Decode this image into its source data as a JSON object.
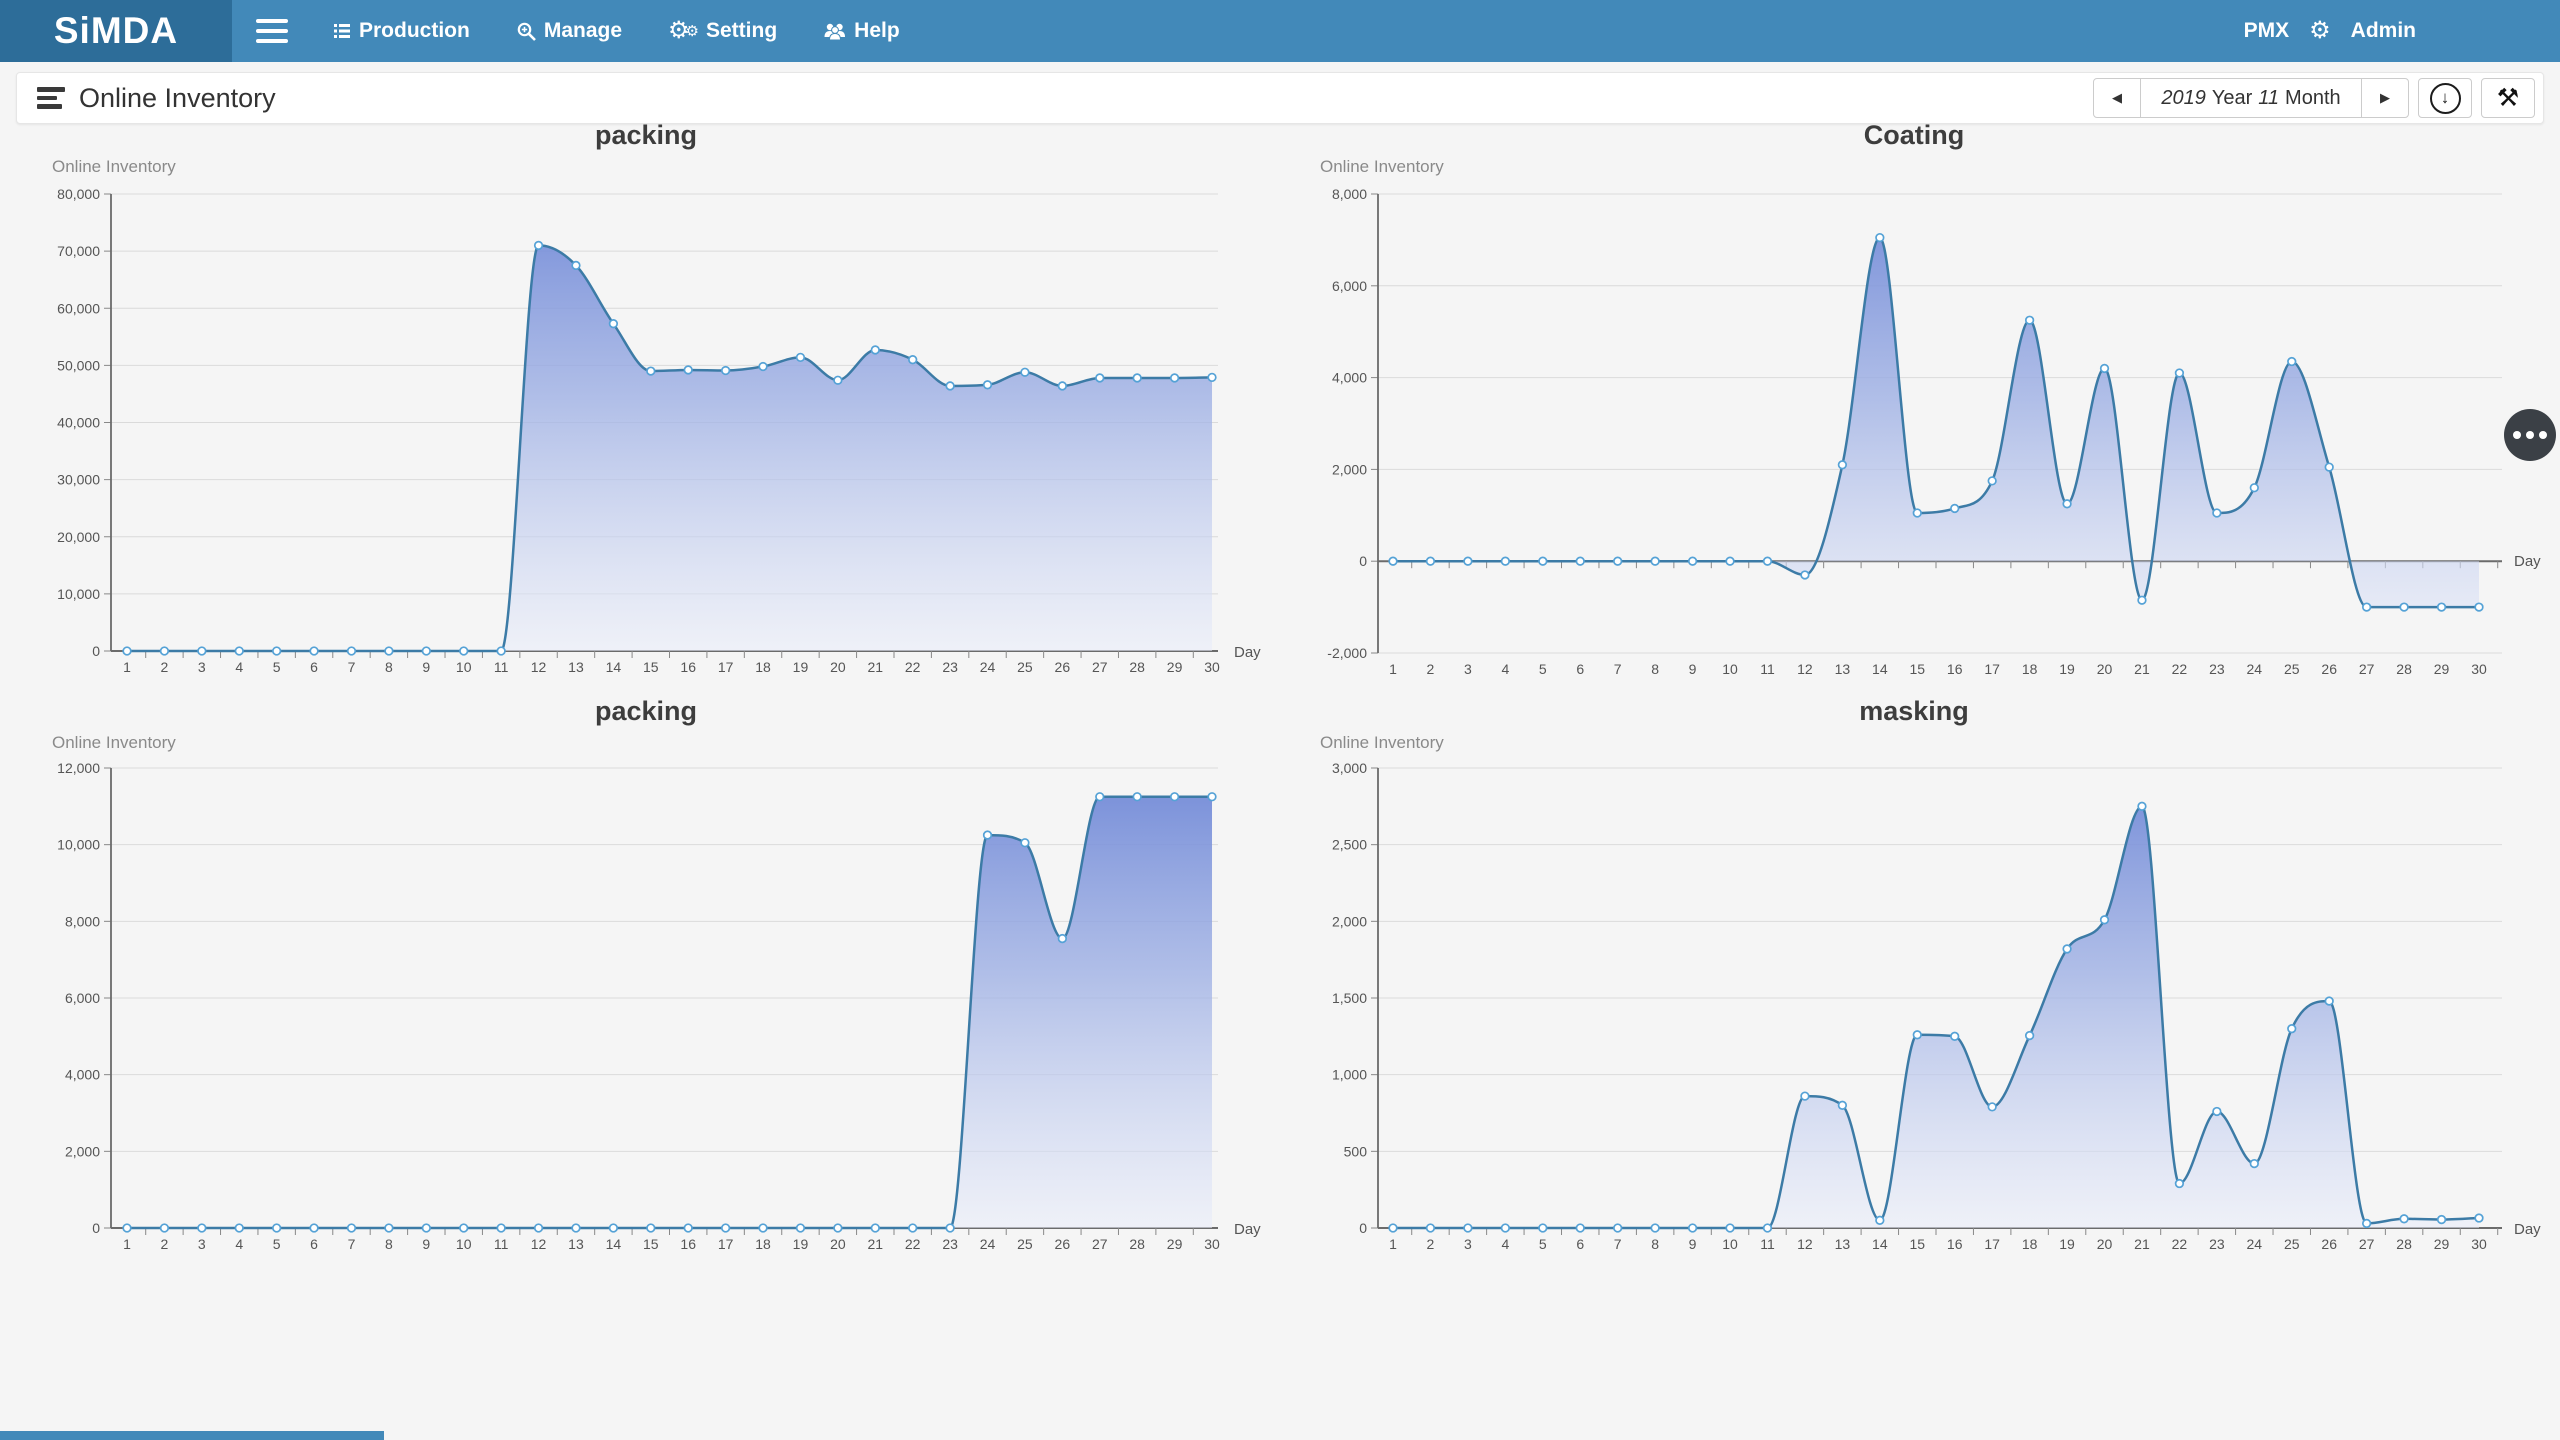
{
  "navbar": {
    "brand": "SiMDA",
    "menu_toggle_icon": "hamburger-icon",
    "items": [
      {
        "label": "Production",
        "icon": "list-lines-icon"
      },
      {
        "label": "Manage",
        "icon": "magnifier-plus-icon"
      },
      {
        "label": "Setting",
        "icon": "gears-icon"
      },
      {
        "label": "Help",
        "icon": "users-icon"
      }
    ],
    "right": {
      "pmx": "PMX",
      "gear_icon": "gear-icon",
      "admin": "Admin"
    }
  },
  "header": {
    "title": "Online Inventory",
    "title_icon": "list-bars-icon",
    "date_nav": {
      "prev_icon": "left-arrow-icon",
      "year_value": "2019",
      "year_label": "Year",
      "month_value": "11",
      "month_label": "Month",
      "next_icon": "right-arrow-icon"
    },
    "download_icon": "download-circle-icon",
    "tools_icon": "tools-icon"
  },
  "floating_button": {
    "icon": "ellipsis-icon"
  },
  "theme": {
    "navbar_bg": "#4289b9",
    "brand_bg": "#2d6d99",
    "page_bg": "#f5f5f5",
    "line_color": "#3c7ba6",
    "marker_ring": "#55a2d6",
    "fill_top": "#6c85d6",
    "fill_bottom": "#e9edfa"
  },
  "chart_data": [
    {
      "type": "area",
      "title": "packing",
      "ylabel": "Online Inventory",
      "xlabel": "Day",
      "categories": [
        1,
        2,
        3,
        4,
        5,
        6,
        7,
        8,
        9,
        10,
        11,
        12,
        13,
        14,
        15,
        16,
        17,
        18,
        19,
        20,
        21,
        22,
        23,
        24,
        25,
        26,
        27,
        28,
        29,
        30
      ],
      "values": [
        0,
        0,
        0,
        0,
        0,
        0,
        0,
        0,
        0,
        0,
        0,
        71000,
        67500,
        57300,
        49000,
        49200,
        49100,
        49800,
        51400,
        47400,
        52700,
        51000,
        46400,
        46600,
        48800,
        46400,
        47800,
        47800,
        47800,
        47900
      ],
      "ylim": [
        0,
        80000
      ],
      "ytick_step": 10000,
      "line_color": "#3c7ba6",
      "markers": true,
      "grid": true,
      "legend": false
    },
    {
      "type": "area",
      "title": "Coating",
      "ylabel": "Online Inventory",
      "xlabel": "Day",
      "categories": [
        1,
        2,
        3,
        4,
        5,
        6,
        7,
        8,
        9,
        10,
        11,
        12,
        13,
        14,
        15,
        16,
        17,
        18,
        19,
        20,
        21,
        22,
        23,
        24,
        25,
        26,
        27,
        28,
        29,
        30
      ],
      "values": [
        0,
        0,
        0,
        0,
        0,
        0,
        0,
        0,
        0,
        0,
        0,
        -300,
        2100,
        7050,
        1050,
        1150,
        1750,
        5250,
        1250,
        4200,
        -850,
        4100,
        1050,
        1600,
        4350,
        2050,
        -1000,
        -1000,
        -1000,
        -1000
      ],
      "ylim": [
        -2000,
        8000
      ],
      "ytick_step": 2000,
      "line_color": "#3c7ba6",
      "markers": true,
      "grid": true,
      "legend": false
    },
    {
      "type": "area",
      "title": "packing",
      "ylabel": "Online Inventory",
      "xlabel": "Day",
      "categories": [
        1,
        2,
        3,
        4,
        5,
        6,
        7,
        8,
        9,
        10,
        11,
        12,
        13,
        14,
        15,
        16,
        17,
        18,
        19,
        20,
        21,
        22,
        23,
        24,
        25,
        26,
        27,
        28,
        29,
        30
      ],
      "values": [
        0,
        0,
        0,
        0,
        0,
        0,
        0,
        0,
        0,
        0,
        0,
        0,
        0,
        0,
        0,
        0,
        0,
        0,
        0,
        0,
        0,
        0,
        0,
        10250,
        10050,
        7550,
        11250,
        11250,
        11250,
        11250
      ],
      "ylim": [
        0,
        12000
      ],
      "ytick_step": 2000,
      "line_color": "#3c7ba6",
      "markers": true,
      "grid": true,
      "legend": false
    },
    {
      "type": "area",
      "title": "masking",
      "ylabel": "Online Inventory",
      "xlabel": "Day",
      "categories": [
        1,
        2,
        3,
        4,
        5,
        6,
        7,
        8,
        9,
        10,
        11,
        12,
        13,
        14,
        15,
        16,
        17,
        18,
        19,
        20,
        21,
        22,
        23,
        24,
        25,
        26,
        27,
        28,
        29,
        30
      ],
      "values": [
        0,
        0,
        0,
        0,
        0,
        0,
        0,
        0,
        0,
        0,
        0,
        860,
        800,
        50,
        1260,
        1250,
        790,
        1255,
        1820,
        2010,
        2750,
        290,
        760,
        420,
        1300,
        1480,
        30,
        60,
        55,
        65
      ],
      "ylim": [
        0,
        3000
      ],
      "ytick_step": 500,
      "line_color": "#3c7ba6",
      "markers": true,
      "grid": true,
      "legend": false
    }
  ]
}
